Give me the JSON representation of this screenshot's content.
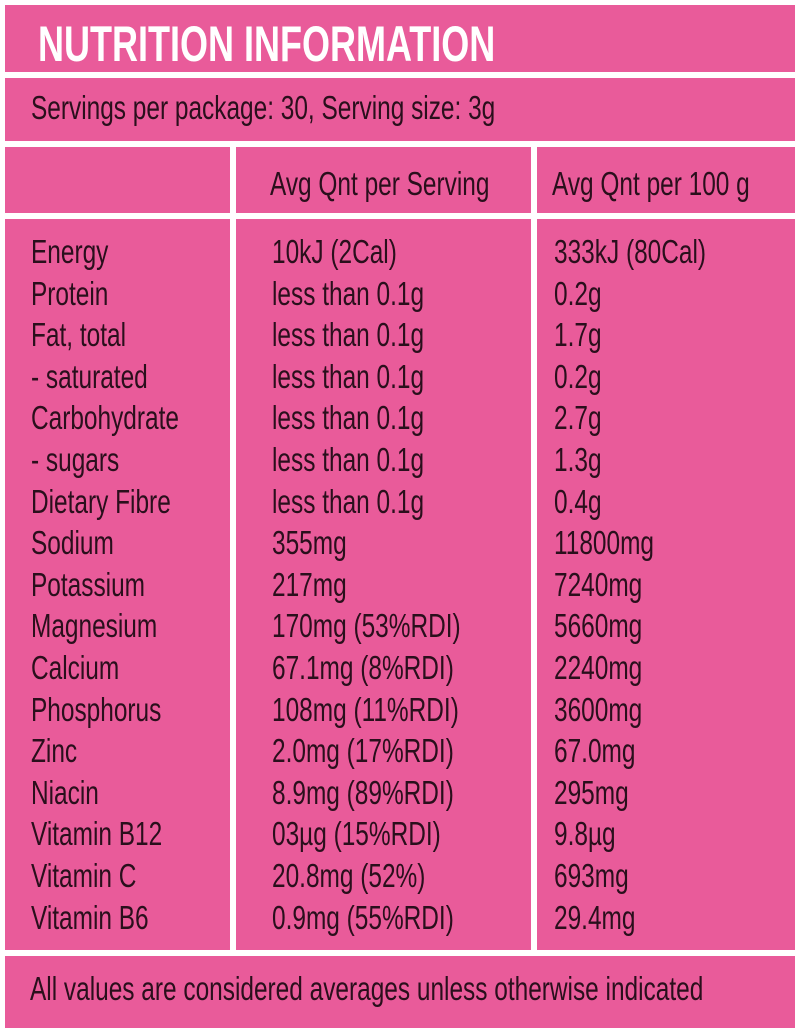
{
  "title": "NUTRITION INFORMATION",
  "servings": "Servings per package: 30, Serving size: 3g",
  "headers": {
    "per_serving": "Avg Qnt per Serving",
    "per_100g": "Avg Qnt per 100 g"
  },
  "rows": [
    {
      "name": "Energy",
      "per_serving": "10kJ (2Cal)",
      "per_100g": "333kJ (80Cal)"
    },
    {
      "name": "Protein",
      "per_serving": "less than 0.1g",
      "per_100g": "0.2g"
    },
    {
      "name": "Fat, total",
      "per_serving": "less than 0.1g",
      "per_100g": "1.7g"
    },
    {
      "name": "- saturated",
      "per_serving": "less than 0.1g",
      "per_100g": "0.2g"
    },
    {
      "name": "Carbohydrate",
      "per_serving": "less than 0.1g",
      "per_100g": "2.7g"
    },
    {
      "name": "- sugars",
      "per_serving": "less than 0.1g",
      "per_100g": "1.3g"
    },
    {
      "name": "Dietary Fibre",
      "per_serving": "less than 0.1g",
      "per_100g": "0.4g"
    },
    {
      "name": "Sodium",
      "per_serving": "355mg",
      "per_100g": "11800mg"
    },
    {
      "name": "Potassium",
      "per_serving": "217mg",
      "per_100g": "7240mg"
    },
    {
      "name": "Magnesium",
      "per_serving": "170mg (53%RDI)",
      "per_100g": "5660mg"
    },
    {
      "name": "Calcium",
      "per_serving": "67.1mg (8%RDI)",
      "per_100g": "2240mg"
    },
    {
      "name": "Phosphorus",
      "per_serving": "108mg (11%RDI)",
      "per_100g": "3600mg"
    },
    {
      "name": "Zinc",
      "per_serving": "2.0mg (17%RDI)",
      "per_100g": "67.0mg"
    },
    {
      "name": "Niacin",
      "per_serving": "8.9mg (89%RDI)",
      "per_100g": "295mg"
    },
    {
      "name": "Vitamin B12",
      "per_serving": "03µg (15%RDI)",
      "per_100g": "9.8µg"
    },
    {
      "name": "Vitamin C",
      "per_serving": "20.8mg (52%)",
      "per_100g": "693mg"
    },
    {
      "name": "Vitamin B6",
      "per_serving": "0.9mg (55%RDI)",
      "per_100g": "29.4mg"
    }
  ],
  "footer": "All values are considered averages unless otherwise indicated",
  "colors": {
    "panel": "#e95b9a",
    "title_text": "#ffffff",
    "text": "#2a0f1c"
  }
}
